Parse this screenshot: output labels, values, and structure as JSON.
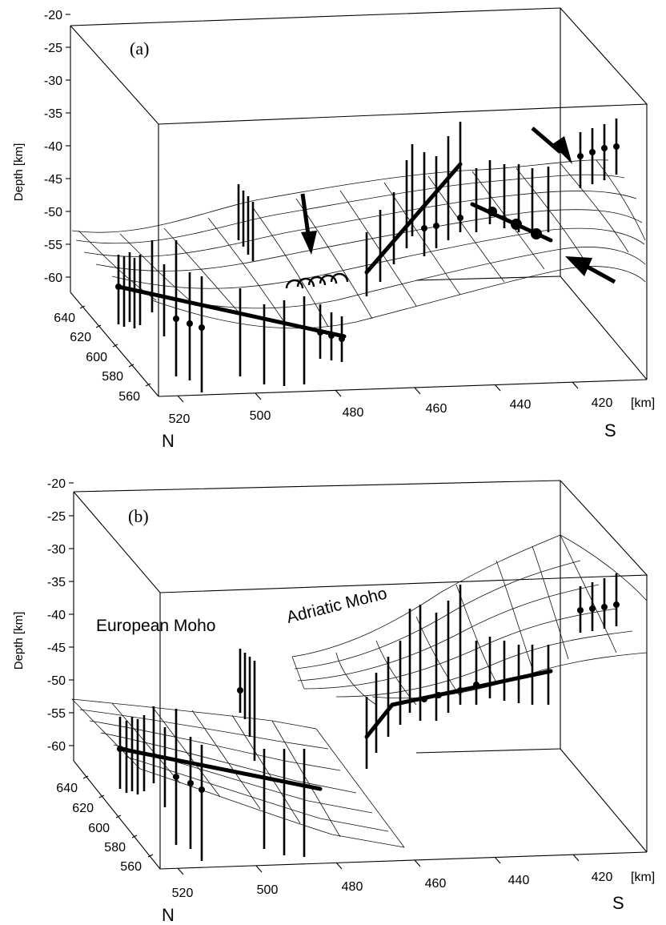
{
  "figure": {
    "panels": [
      {
        "label": "(a)",
        "y_axis_title": "Depth [km]",
        "depth_ticks": [
          "-20",
          "-25",
          "-30",
          "-35",
          "-40",
          "-45",
          "-50",
          "-55",
          "-60"
        ],
        "y_ticks": [
          "640",
          "620",
          "600",
          "580",
          "560"
        ],
        "x_ticks": [
          "520",
          "500",
          "480",
          "460",
          "440",
          "420"
        ],
        "x_unit": "[km]",
        "north_label": "N",
        "south_label": "S",
        "surfaces": []
      },
      {
        "label": "(b)",
        "y_axis_title": "Depth [km]",
        "depth_ticks": [
          "-20",
          "-25",
          "-30",
          "-35",
          "-40",
          "-45",
          "-50",
          "-55",
          "-60"
        ],
        "y_ticks": [
          "640",
          "620",
          "600",
          "580",
          "560"
        ],
        "x_ticks": [
          "520",
          "500",
          "480",
          "460",
          "440",
          "420"
        ],
        "x_unit": "[km]",
        "north_label": "N",
        "south_label": "S",
        "surfaces": [
          "European Moho",
          "Adriatic Moho"
        ]
      }
    ]
  }
}
